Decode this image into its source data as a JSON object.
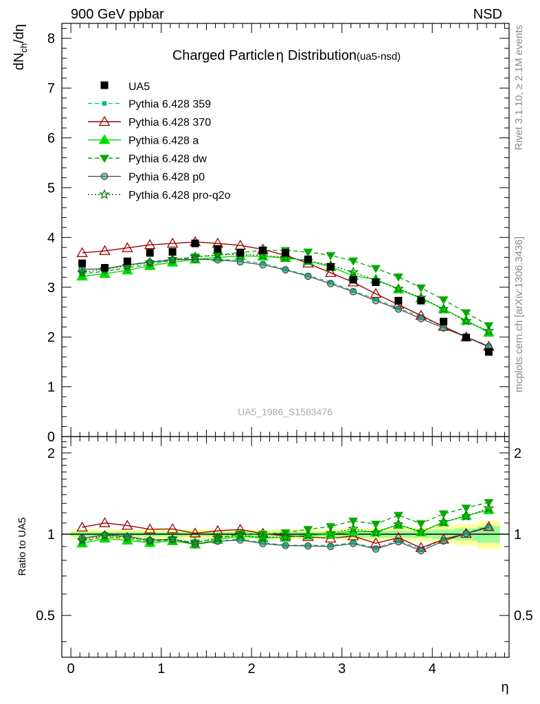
{
  "header": {
    "left": "900 GeV ppbar",
    "right": "NSD"
  },
  "side_labels": {
    "rivet": "Rivet 3.1.10, ≥ 2.1M events",
    "mcplots": "mcplots.cern.ch [arXiv:1306.3436]"
  },
  "watermark": "UA5_1986_S1583476",
  "colors": {
    "data": "#000000",
    "p359": "#00bb88",
    "p370": "#990000",
    "pa": "#00dd00",
    "pdw": "#00aa00",
    "pp0": "#444444",
    "ppro": "#007700",
    "band_yellow": "#ffff99",
    "band_green": "#99ff99"
  },
  "chart_data": {
    "type": "line",
    "title_main": "Charged Particle",
    "title_eta": "η",
    "title_rest": "Distribution",
    "title_tag": "(ua5-nsd)",
    "ylabel_main": "dN",
    "ylabel_sub": "ch",
    "ylabel_tail": "/dη",
    "xlabel": "η",
    "ratio_ylabel": "Ratio to UA5",
    "xlim": [
      -0.1,
      4.85
    ],
    "ylim": [
      0,
      8.3
    ],
    "ratio_ylim": [
      0.35,
      2.3
    ],
    "x_ticks": [
      0,
      1,
      2,
      3,
      4
    ],
    "x_tick_labels": [
      "0",
      "1",
      "2",
      "3",
      "4"
    ],
    "y_ticks": [
      0,
      1,
      2,
      3,
      4,
      5,
      6,
      7,
      8
    ],
    "y_tick_labels": [
      "0",
      "1",
      "2",
      "3",
      "4",
      "5",
      "6",
      "7",
      "8"
    ],
    "ratio_ticks": [
      0.5,
      1,
      2
    ],
    "ratio_tick_labels": [
      "0.5",
      "1",
      "2"
    ],
    "x": [
      0.125,
      0.375,
      0.625,
      0.875,
      1.125,
      1.375,
      1.625,
      1.875,
      2.125,
      2.375,
      2.625,
      2.875,
      3.125,
      3.375,
      3.625,
      3.875,
      4.125,
      4.375,
      4.625
    ],
    "data": {
      "name": "UA5",
      "values": [
        3.48,
        3.39,
        3.52,
        3.69,
        3.71,
        3.88,
        3.77,
        3.69,
        3.74,
        3.69,
        3.56,
        3.41,
        3.15,
        3.1,
        2.73,
        2.73,
        2.31,
        1.99,
        1.7
      ]
    },
    "band_yellow": [
      0.04,
      0.04,
      0.04,
      0.04,
      0.04,
      0.04,
      0.04,
      0.04,
      0.04,
      0.04,
      0.04,
      0.04,
      0.05,
      0.05,
      0.05,
      0.06,
      0.07,
      0.09,
      0.12
    ],
    "band_green": [
      0.02,
      0.02,
      0.02,
      0.02,
      0.02,
      0.02,
      0.02,
      0.02,
      0.02,
      0.02,
      0.02,
      0.02,
      0.03,
      0.03,
      0.03,
      0.03,
      0.04,
      0.05,
      0.07
    ],
    "series": [
      {
        "name": "Pythia 6.428 359",
        "style": "p359",
        "values": [
          3.36,
          3.37,
          3.45,
          3.51,
          3.56,
          3.57,
          3.56,
          3.54,
          3.48,
          3.36,
          3.24,
          3.1,
          2.93,
          2.76,
          2.58,
          2.41,
          2.21,
          2.01,
          1.82
        ]
      },
      {
        "name": "Pythia 6.428 370",
        "style": "p370",
        "values": [
          3.69,
          3.73,
          3.79,
          3.85,
          3.88,
          3.91,
          3.88,
          3.84,
          3.76,
          3.64,
          3.48,
          3.29,
          3.1,
          2.87,
          2.65,
          2.43,
          2.21,
          2.0,
          1.81
        ]
      },
      {
        "name": "Pythia 6.428 a",
        "style": "pa",
        "values": [
          3.22,
          3.27,
          3.34,
          3.43,
          3.5,
          3.56,
          3.6,
          3.63,
          3.62,
          3.59,
          3.53,
          3.41,
          3.23,
          3.16,
          2.96,
          2.78,
          2.56,
          2.33,
          2.09
        ]
      },
      {
        "name": "Pythia 6.428 dw",
        "style": "pdw",
        "values": [
          3.27,
          3.32,
          3.39,
          3.46,
          3.54,
          3.61,
          3.64,
          3.7,
          3.74,
          3.74,
          3.71,
          3.64,
          3.53,
          3.38,
          3.21,
          2.99,
          2.75,
          2.49,
          2.23
        ]
      },
      {
        "name": "Pythia 6.428 p0",
        "style": "pp0",
        "values": [
          3.36,
          3.37,
          3.45,
          3.5,
          3.55,
          3.56,
          3.55,
          3.51,
          3.45,
          3.35,
          3.22,
          3.07,
          2.91,
          2.73,
          2.56,
          2.37,
          2.18,
          2.0,
          1.8
        ]
      },
      {
        "name": "Pythia 6.428 pro-q2o",
        "style": "ppro",
        "values": [
          3.3,
          3.36,
          3.43,
          3.5,
          3.56,
          3.61,
          3.65,
          3.66,
          3.64,
          3.6,
          3.53,
          3.44,
          3.3,
          3.14,
          2.97,
          2.79,
          2.56,
          2.32,
          2.12
        ]
      }
    ]
  }
}
